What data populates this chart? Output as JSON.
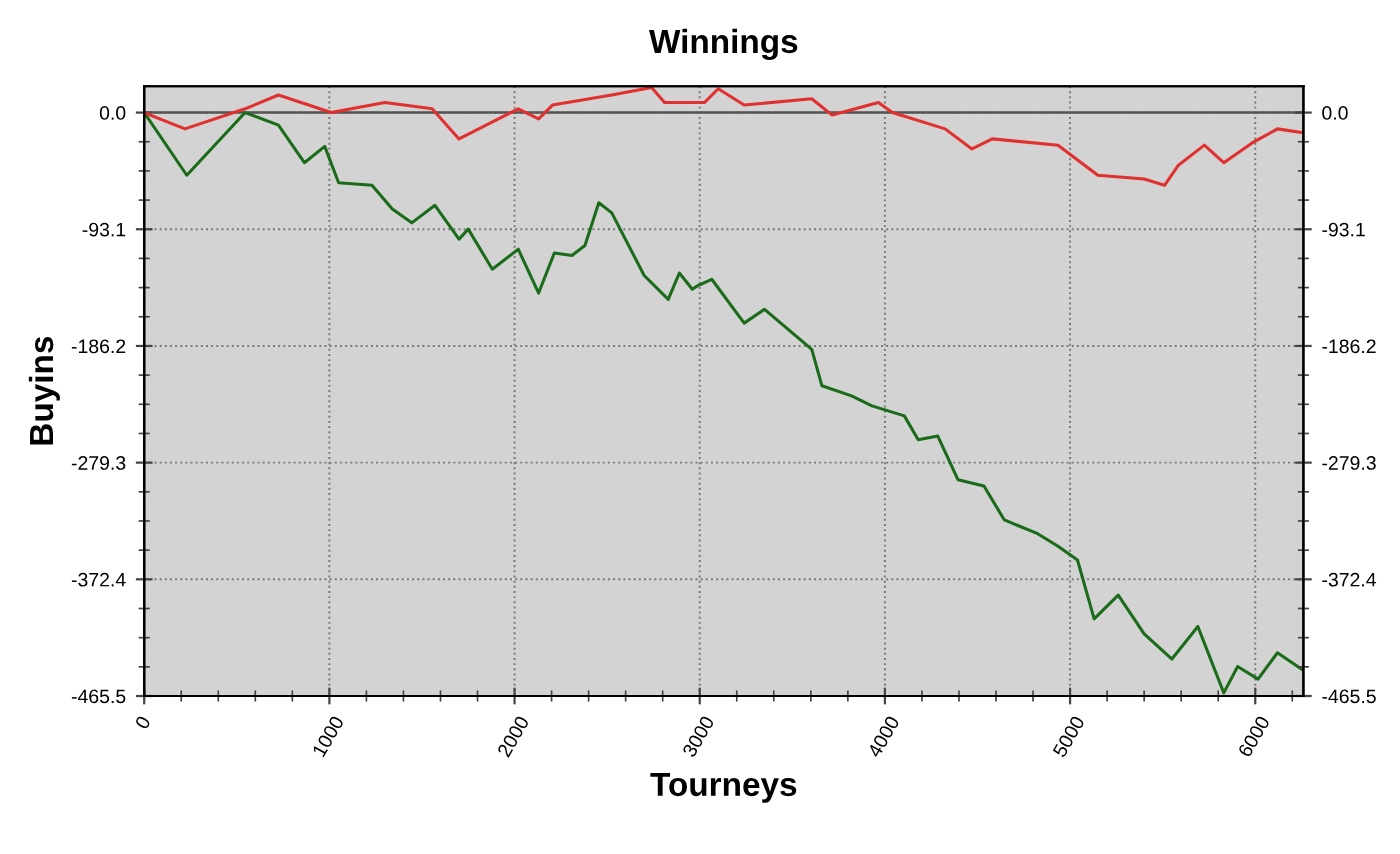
{
  "chart_data": {
    "type": "line",
    "title": "Winnings",
    "xlabel": "Tourneys",
    "ylabel": "Buyins",
    "series": [
      {
        "color": "#1a6b1a",
        "x": [
          0,
          230,
          545,
          725,
          865,
          975,
          1050,
          1230,
          1340,
          1445,
          1570,
          1700,
          1750,
          1880,
          2020,
          2130,
          2215,
          2310,
          2380,
          2455,
          2525,
          2700,
          2830,
          2890,
          2960,
          2990,
          3065,
          3240,
          3350,
          3605,
          3660,
          3820,
          3930,
          4105,
          4180,
          4285,
          4395,
          4535,
          4645,
          4825,
          4935,
          5040,
          5130,
          5260,
          5400,
          5550,
          5690,
          5830,
          5905,
          6015,
          6120,
          6250
        ],
        "values": [
          0,
          -50,
          0,
          -10,
          -40,
          -27,
          -56,
          -58,
          -77,
          -88,
          -74,
          -101,
          -93,
          -125,
          -109,
          -144,
          -112,
          -114,
          -106,
          -72,
          -80,
          -130,
          -149,
          -128,
          -141,
          -138,
          -133,
          -168,
          -157,
          -189,
          -218,
          -226,
          -234,
          -242,
          -261,
          -258,
          -293,
          -298,
          -325,
          -336,
          -346,
          -357,
          -404,
          -385,
          -416,
          -436,
          -410,
          -463,
          -442,
          -452,
          -431,
          -444
        ]
      },
      {
        "color": "#e03030",
        "x": [
          0,
          220,
          545,
          725,
          1010,
          1300,
          1555,
          1700,
          2020,
          2130,
          2205,
          2525,
          2740,
          2810,
          3025,
          3100,
          3240,
          3605,
          3715,
          3965,
          4040,
          4325,
          4470,
          4580,
          4935,
          5150,
          5400,
          5510,
          5585,
          5725,
          5830,
          5985,
          6120,
          6250
        ],
        "values": [
          0,
          -13,
          3,
          14,
          0,
          8,
          3,
          -21,
          3,
          -5,
          6,
          14,
          20,
          8,
          8,
          19,
          6,
          11,
          -2,
          8,
          0,
          -13,
          -29,
          -21,
          -26,
          -50,
          -53,
          -58,
          -42,
          -26,
          -40,
          -24,
          -13,
          -16
        ]
      }
    ],
    "xlim": [
      0,
      6260
    ],
    "xticks": [
      0,
      1000,
      2000,
      3000,
      4000,
      5000,
      6000
    ],
    "ylim": [
      -465.5,
      21
    ],
    "yticks": [
      {
        "value": 0,
        "label": "0.0"
      },
      -93.1,
      -186.2,
      -279.3,
      -372.4,
      -465.5
    ],
    "y2lim": [
      -465.5,
      21
    ],
    "y2ticks": [
      {
        "value": 0,
        "label": "0.0"
      },
      -93.1,
      -186.2,
      -279.3,
      -372.4,
      -465.5
    ],
    "ref_lines": [
      {
        "axis": "y",
        "value": 0,
        "color": "#555555",
        "line_style": "solid"
      }
    ],
    "grid": true,
    "legend": false,
    "marker": "none",
    "line_style": "solid"
  }
}
